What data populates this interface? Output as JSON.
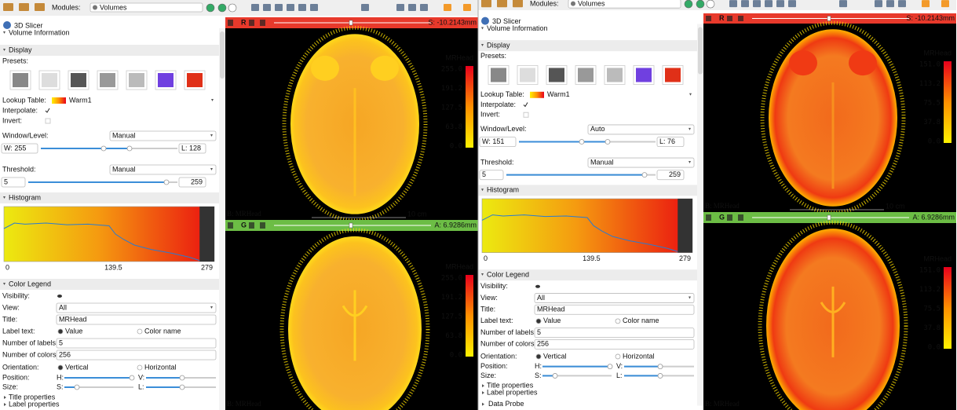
{
  "windows": [
    {
      "toolbar": {
        "modules_label": "Modules:",
        "module": "Volumes"
      },
      "app_title": "3D Slicer",
      "volume_information": "Volume Information",
      "display": {
        "header": "Display",
        "presets": "Presets:",
        "lookup_table_label": "Lookup Table:",
        "lookup_table": "Warm1",
        "interpolate": "Interpolate:",
        "invert": "Invert:",
        "window_level_label": "Window/Level:",
        "window_level_mode": "Manual",
        "window": "W: 255",
        "level": "L: 128",
        "threshold_label": "Threshold:",
        "threshold_mode": "Manual",
        "threshold_min": "5",
        "threshold_max": "259"
      },
      "histogram": {
        "header": "Histogram",
        "axis_labels": [
          "0",
          "139.5",
          "279"
        ]
      },
      "color_legend": {
        "header": "Color Legend",
        "visibility": "Visibility:",
        "view_label": "View:",
        "view": "All",
        "title_label": "Title:",
        "title": "MRHead",
        "label_text_label": "Label text:",
        "label_text_options": [
          "Value",
          "Color name"
        ],
        "number_of_labels_label": "Number of labels:",
        "number_of_labels": "5",
        "number_of_colors_label": "Number of colors:",
        "number_of_colors": "256",
        "orientation_label": "Orientation:",
        "orientation_options": [
          "Vertical",
          "Horizontal"
        ],
        "position_label": "Position:",
        "position_axes": [
          "H:",
          "V:"
        ],
        "size_label": "Size:",
        "size_axes": [
          "S:",
          "L:"
        ],
        "title_properties": "Title properties",
        "label_properties": "Label properties"
      },
      "extra_sections": [],
      "views": [
        {
          "letter": "R",
          "offset": "S: -10.2143mm",
          "legend_title": "MRHead",
          "legend_labels": [
            "255.0",
            "191.2",
            "127.5",
            "63.8",
            "0.0"
          ],
          "volume": "B: MRHead",
          "scale": "10 cm"
        },
        {
          "letter": "G",
          "offset": "A: 6.9286mm",
          "legend_title": "MRHead",
          "legend_labels": [
            "255.0",
            "191.2",
            "127.5",
            "63.8",
            "0.0"
          ],
          "volume": "B: MRHead"
        }
      ]
    },
    {
      "toolbar": {
        "modules_label": "Modules:",
        "module": "Volumes"
      },
      "app_title": "3D Slicer",
      "volume_information": "Volume Information",
      "display": {
        "header": "Display",
        "presets": "Presets:",
        "lookup_table_label": "Lookup Table:",
        "lookup_table": "Warm1",
        "interpolate": "Interpolate:",
        "invert": "Invert:",
        "window_level_label": "Window/Level:",
        "window_level_mode": "Auto",
        "window": "W: 151",
        "level": "L: 76",
        "threshold_label": "Threshold:",
        "threshold_mode": "Manual",
        "threshold_min": "5",
        "threshold_max": "259"
      },
      "histogram": {
        "header": "Histogram",
        "axis_labels": [
          "0",
          "139.5",
          "279"
        ]
      },
      "color_legend": {
        "header": "Color Legend",
        "visibility": "Visibility:",
        "view_label": "View:",
        "view": "All",
        "title_label": "Title:",
        "title": "MRHead",
        "label_text_label": "Label text:",
        "label_text_options": [
          "Value",
          "Color name"
        ],
        "number_of_labels_label": "Number of labels:",
        "number_of_labels": "5",
        "number_of_colors_label": "Number of colors:",
        "number_of_colors": "256",
        "orientation_label": "Orientation:",
        "orientation_options": [
          "Vertical",
          "Horizontal"
        ],
        "position_label": "Position:",
        "position_axes": [
          "H:",
          "V:"
        ],
        "size_label": "Size:",
        "size_axes": [
          "S:",
          "L:"
        ],
        "title_properties": "Title properties",
        "label_properties": "Label properties"
      },
      "extra_sections": [
        "Data Probe"
      ],
      "views": [
        {
          "letter": "R",
          "offset": "S: -10.2143mm",
          "legend_title": "MRHead",
          "legend_labels": [
            "151.0",
            "113.2",
            "75.5",
            "37.8",
            "0.0"
          ],
          "volume": "B: MRHead",
          "scale": "10 cm"
        },
        {
          "letter": "G",
          "offset": "A: 6.9286mm",
          "legend_title": "MRHead",
          "legend_labels": [
            "151.0",
            "113.2",
            "75.5",
            "37.8",
            "0.0"
          ],
          "volume": "B: MRHead"
        }
      ]
    }
  ]
}
